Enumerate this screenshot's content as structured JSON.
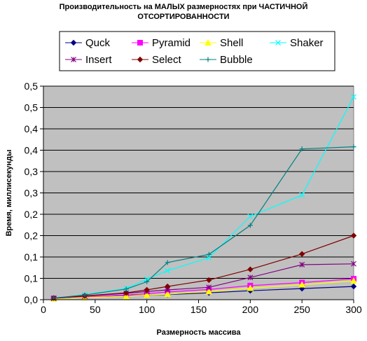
{
  "chart_data": {
    "type": "line",
    "title_lines": [
      "Производительность на МАЛЫХ размерностях при ЧАСТИЧНОЙ",
      "ОТСОРТИРОВАННОСТИ"
    ],
    "xlabel": "Размерность массива",
    "ylabel": "Время, миллисекунды",
    "x": [
      10,
      40,
      80,
      100,
      120,
      160,
      200,
      250,
      300
    ],
    "xlim": [
      0,
      300
    ],
    "ylim": [
      0,
      0.5
    ],
    "x_ticks": [
      "0",
      "50",
      "100",
      "150",
      "200",
      "250",
      "300"
    ],
    "y_ticks": [
      "0,0",
      "0,1",
      "0,1",
      "0,2",
      "0,2",
      "0,3",
      "0,3",
      "0,4",
      "0,4",
      "0,5",
      "0,5"
    ],
    "grid": "horizontal",
    "plot_background": "#c0c0c0",
    "legend_position": "top",
    "series": [
      {
        "name": "Quck",
        "color": "#000080",
        "marker": "diamond",
        "values": [
          0.003,
          0.005,
          0.009,
          0.011,
          0.012,
          0.016,
          0.021,
          0.026,
          0.031
        ]
      },
      {
        "name": "Pyramid",
        "color": "#ff00ff",
        "marker": "square",
        "values": [
          0.003,
          0.006,
          0.011,
          0.014,
          0.018,
          0.024,
          0.033,
          0.04,
          0.049
        ]
      },
      {
        "name": "Shell",
        "color": "#ffff00",
        "marker": "triangle",
        "values": [
          0.002,
          0.005,
          0.008,
          0.011,
          0.013,
          0.019,
          0.027,
          0.035,
          0.044
        ]
      },
      {
        "name": "Shaker",
        "color": "#00ffff",
        "marker": "x",
        "values": [
          0.003,
          0.012,
          0.026,
          0.048,
          0.068,
          0.098,
          0.195,
          0.245,
          0.475
        ]
      },
      {
        "name": "Insert",
        "color": "#800080",
        "marker": "star",
        "values": [
          0.003,
          0.008,
          0.015,
          0.019,
          0.023,
          0.029,
          0.052,
          0.082,
          0.084
        ]
      },
      {
        "name": "Select",
        "color": "#800000",
        "marker": "diamond",
        "values": [
          0.004,
          0.009,
          0.016,
          0.023,
          0.031,
          0.046,
          0.071,
          0.107,
          0.15
        ]
      },
      {
        "name": "Bubble",
        "color": "#008080",
        "marker": "plus",
        "values": [
          0.004,
          0.011,
          0.025,
          0.042,
          0.087,
          0.106,
          0.174,
          0.353,
          0.358
        ]
      }
    ]
  }
}
